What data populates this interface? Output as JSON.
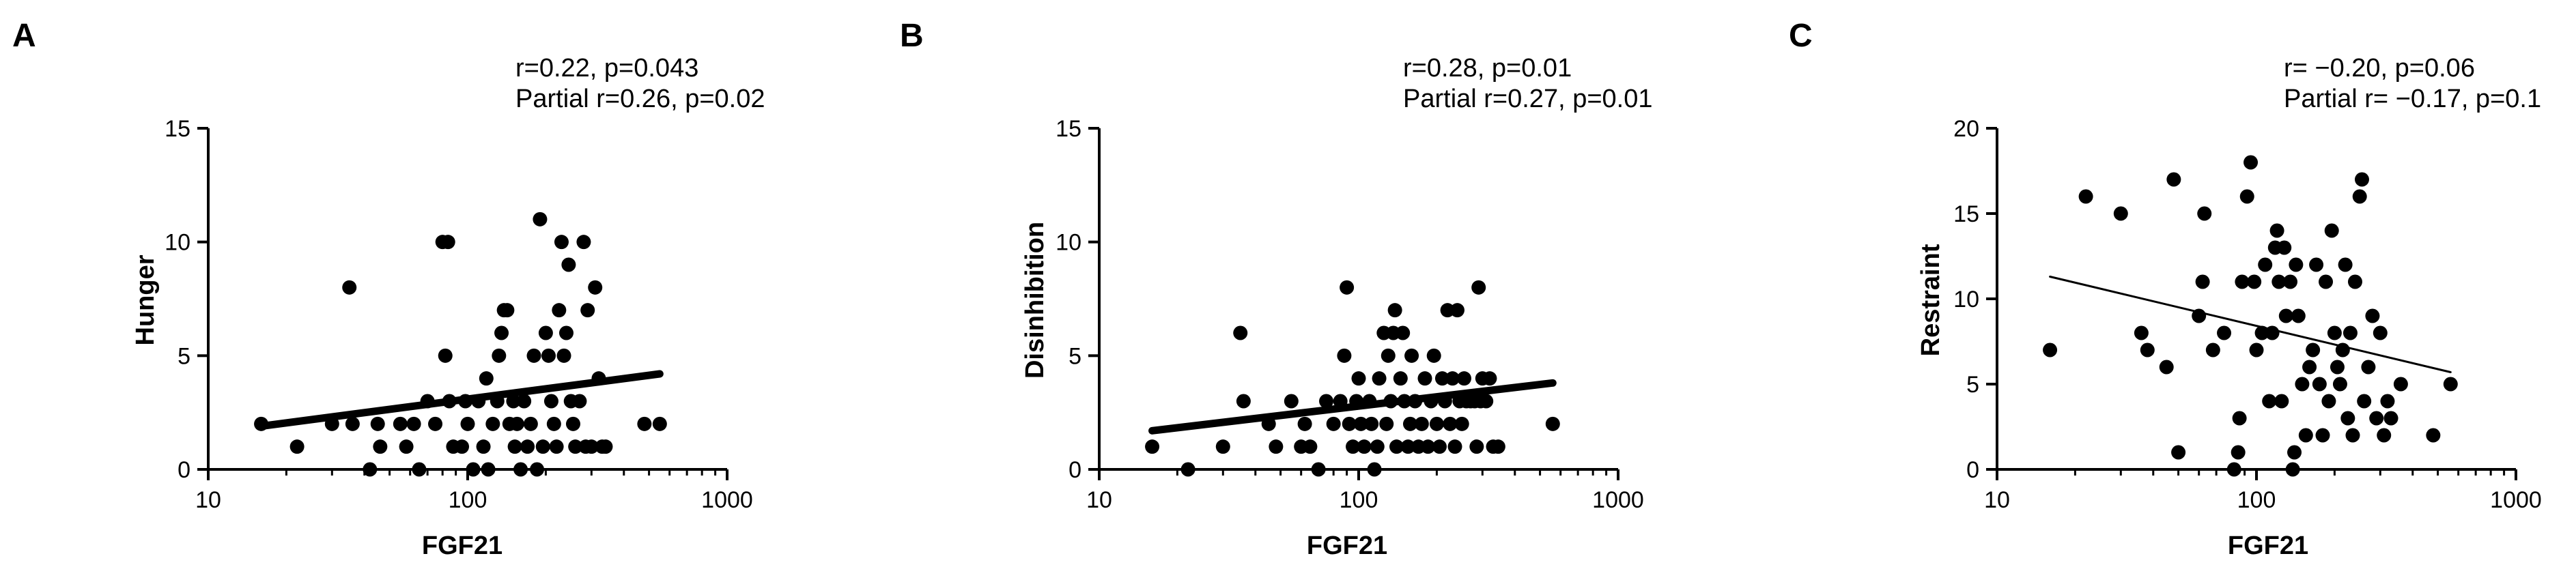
{
  "chart_data": [
    {
      "type": "scatter",
      "panel_label": "A",
      "stat_line1": "r=0.22, p=0.043",
      "stat_line2": "Partial r=0.26, p=0.02",
      "xlabel": "FGF21",
      "ylabel": "Hunger",
      "x_scale": "log",
      "xlim": [
        10,
        1000
      ],
      "ylim": [
        0,
        15
      ],
      "x_ticks": [
        10,
        100,
        1000
      ],
      "x_tick_labels": [
        "10",
        "100",
        "1000"
      ],
      "y_ticks": [
        0,
        5,
        10,
        15
      ],
      "y_tick_labels": [
        "0",
        "5",
        "10",
        "15"
      ],
      "trend_line": {
        "x": [
          16,
          550
        ],
        "y": [
          1.9,
          4.2
        ],
        "style": "thick"
      },
      "points": [
        {
          "x": 16,
          "y": 2
        },
        {
          "x": 22,
          "y": 1
        },
        {
          "x": 30,
          "y": 2
        },
        {
          "x": 35,
          "y": 8
        },
        {
          "x": 36,
          "y": 2
        },
        {
          "x": 42,
          "y": 0
        },
        {
          "x": 45,
          "y": 2
        },
        {
          "x": 46,
          "y": 1
        },
        {
          "x": 55,
          "y": 2
        },
        {
          "x": 58,
          "y": 1
        },
        {
          "x": 62,
          "y": 2
        },
        {
          "x": 65,
          "y": 0
        },
        {
          "x": 70,
          "y": 3
        },
        {
          "x": 75,
          "y": 2
        },
        {
          "x": 80,
          "y": 10
        },
        {
          "x": 84,
          "y": 10
        },
        {
          "x": 82,
          "y": 5
        },
        {
          "x": 85,
          "y": 3
        },
        {
          "x": 88,
          "y": 1
        },
        {
          "x": 95,
          "y": 1
        },
        {
          "x": 98,
          "y": 3
        },
        {
          "x": 100,
          "y": 2
        },
        {
          "x": 105,
          "y": 0
        },
        {
          "x": 110,
          "y": 3
        },
        {
          "x": 115,
          "y": 1
        },
        {
          "x": 118,
          "y": 4
        },
        {
          "x": 120,
          "y": 0
        },
        {
          "x": 125,
          "y": 2
        },
        {
          "x": 130,
          "y": 3
        },
        {
          "x": 132,
          "y": 5
        },
        {
          "x": 135,
          "y": 6
        },
        {
          "x": 138,
          "y": 7
        },
        {
          "x": 142,
          "y": 7
        },
        {
          "x": 145,
          "y": 2
        },
        {
          "x": 150,
          "y": 3
        },
        {
          "x": 152,
          "y": 1
        },
        {
          "x": 155,
          "y": 2
        },
        {
          "x": 160,
          "y": 0
        },
        {
          "x": 165,
          "y": 3
        },
        {
          "x": 170,
          "y": 1
        },
        {
          "x": 175,
          "y": 2
        },
        {
          "x": 180,
          "y": 5
        },
        {
          "x": 185,
          "y": 0
        },
        {
          "x": 190,
          "y": 11
        },
        {
          "x": 195,
          "y": 1
        },
        {
          "x": 200,
          "y": 6
        },
        {
          "x": 205,
          "y": 5
        },
        {
          "x": 210,
          "y": 3
        },
        {
          "x": 215,
          "y": 2
        },
        {
          "x": 220,
          "y": 1
        },
        {
          "x": 225,
          "y": 7
        },
        {
          "x": 230,
          "y": 10
        },
        {
          "x": 235,
          "y": 5
        },
        {
          "x": 240,
          "y": 6
        },
        {
          "x": 245,
          "y": 9
        },
        {
          "x": 250,
          "y": 3
        },
        {
          "x": 255,
          "y": 2
        },
        {
          "x": 260,
          "y": 1
        },
        {
          "x": 270,
          "y": 3
        },
        {
          "x": 280,
          "y": 10
        },
        {
          "x": 285,
          "y": 1
        },
        {
          "x": 290,
          "y": 7
        },
        {
          "x": 300,
          "y": 1
        },
        {
          "x": 310,
          "y": 8
        },
        {
          "x": 320,
          "y": 4
        },
        {
          "x": 330,
          "y": 1
        },
        {
          "x": 340,
          "y": 1
        },
        {
          "x": 480,
          "y": 2
        },
        {
          "x": 550,
          "y": 2
        }
      ]
    },
    {
      "type": "scatter",
      "panel_label": "B",
      "stat_line1": "r=0.28, p=0.01",
      "stat_line2": "Partial r=0.27, p=0.01",
      "xlabel": "FGF21",
      "ylabel": "Disinhibition",
      "x_scale": "log",
      "xlim": [
        10,
        1000
      ],
      "ylim": [
        0,
        15
      ],
      "x_ticks": [
        10,
        100,
        1000
      ],
      "x_tick_labels": [
        "10",
        "100",
        "1000"
      ],
      "y_ticks": [
        0,
        5,
        10,
        15
      ],
      "y_tick_labels": [
        "0",
        "5",
        "10",
        "15"
      ],
      "trend_line": {
        "x": [
          16,
          560
        ],
        "y": [
          1.7,
          3.8
        ],
        "style": "thick"
      },
      "points": [
        {
          "x": 16,
          "y": 1
        },
        {
          "x": 22,
          "y": 0
        },
        {
          "x": 30,
          "y": 1
        },
        {
          "x": 35,
          "y": 6
        },
        {
          "x": 36,
          "y": 3
        },
        {
          "x": 45,
          "y": 2
        },
        {
          "x": 48,
          "y": 1
        },
        {
          "x": 55,
          "y": 3
        },
        {
          "x": 60,
          "y": 1
        },
        {
          "x": 62,
          "y": 2
        },
        {
          "x": 65,
          "y": 1
        },
        {
          "x": 70,
          "y": 0
        },
        {
          "x": 75,
          "y": 3
        },
        {
          "x": 80,
          "y": 2
        },
        {
          "x": 85,
          "y": 3
        },
        {
          "x": 88,
          "y": 5
        },
        {
          "x": 90,
          "y": 8
        },
        {
          "x": 92,
          "y": 2
        },
        {
          "x": 95,
          "y": 1
        },
        {
          "x": 98,
          "y": 3
        },
        {
          "x": 100,
          "y": 4
        },
        {
          "x": 102,
          "y": 2
        },
        {
          "x": 105,
          "y": 1
        },
        {
          "x": 110,
          "y": 3
        },
        {
          "x": 112,
          "y": 2
        },
        {
          "x": 115,
          "y": 0
        },
        {
          "x": 118,
          "y": 1
        },
        {
          "x": 120,
          "y": 4
        },
        {
          "x": 125,
          "y": 6
        },
        {
          "x": 128,
          "y": 2
        },
        {
          "x": 130,
          "y": 5
        },
        {
          "x": 133,
          "y": 3
        },
        {
          "x": 136,
          "y": 6
        },
        {
          "x": 138,
          "y": 7
        },
        {
          "x": 140,
          "y": 1
        },
        {
          "x": 145,
          "y": 4
        },
        {
          "x": 148,
          "y": 6
        },
        {
          "x": 150,
          "y": 3
        },
        {
          "x": 155,
          "y": 1
        },
        {
          "x": 158,
          "y": 2
        },
        {
          "x": 160,
          "y": 5
        },
        {
          "x": 165,
          "y": 3
        },
        {
          "x": 170,
          "y": 1
        },
        {
          "x": 175,
          "y": 2
        },
        {
          "x": 180,
          "y": 4
        },
        {
          "x": 185,
          "y": 1
        },
        {
          "x": 190,
          "y": 3
        },
        {
          "x": 195,
          "y": 5
        },
        {
          "x": 200,
          "y": 2
        },
        {
          "x": 205,
          "y": 1
        },
        {
          "x": 210,
          "y": 4
        },
        {
          "x": 215,
          "y": 3
        },
        {
          "x": 220,
          "y": 7
        },
        {
          "x": 225,
          "y": 2
        },
        {
          "x": 230,
          "y": 4
        },
        {
          "x": 235,
          "y": 1
        },
        {
          "x": 240,
          "y": 7
        },
        {
          "x": 245,
          "y": 3
        },
        {
          "x": 250,
          "y": 2
        },
        {
          "x": 255,
          "y": 4
        },
        {
          "x": 260,
          "y": 3
        },
        {
          "x": 270,
          "y": 3
        },
        {
          "x": 280,
          "y": 3
        },
        {
          "x": 285,
          "y": 1
        },
        {
          "x": 290,
          "y": 8
        },
        {
          "x": 295,
          "y": 3
        },
        {
          "x": 300,
          "y": 4
        },
        {
          "x": 310,
          "y": 3
        },
        {
          "x": 320,
          "y": 4
        },
        {
          "x": 330,
          "y": 1
        },
        {
          "x": 345,
          "y": 1
        },
        {
          "x": 560,
          "y": 2
        }
      ]
    },
    {
      "type": "scatter",
      "panel_label": "C",
      "stat_line1": "r= −0.20, p=0.06",
      "stat_line2": "Partial r= −0.17, p=0.1",
      "xlabel": "FGF21",
      "ylabel": "Restraint",
      "x_scale": "log",
      "xlim": [
        10,
        1000
      ],
      "ylim": [
        0,
        20
      ],
      "x_ticks": [
        10,
        100,
        1000
      ],
      "x_tick_labels": [
        "10",
        "100",
        "1000"
      ],
      "y_ticks": [
        0,
        5,
        10,
        15,
        20
      ],
      "y_tick_labels": [
        "0",
        "5",
        "10",
        "15",
        "20"
      ],
      "trend_line": {
        "x": [
          16,
          560
        ],
        "y": [
          11.3,
          5.7
        ],
        "style": "thin"
      },
      "points": [
        {
          "x": 16,
          "y": 7
        },
        {
          "x": 22,
          "y": 16
        },
        {
          "x": 30,
          "y": 15
        },
        {
          "x": 36,
          "y": 8
        },
        {
          "x": 38,
          "y": 7
        },
        {
          "x": 45,
          "y": 6
        },
        {
          "x": 48,
          "y": 17
        },
        {
          "x": 50,
          "y": 1
        },
        {
          "x": 60,
          "y": 9
        },
        {
          "x": 62,
          "y": 11
        },
        {
          "x": 63,
          "y": 15
        },
        {
          "x": 68,
          "y": 7
        },
        {
          "x": 75,
          "y": 8
        },
        {
          "x": 82,
          "y": 0
        },
        {
          "x": 85,
          "y": 1
        },
        {
          "x": 86,
          "y": 3
        },
        {
          "x": 88,
          "y": 11
        },
        {
          "x": 92,
          "y": 16
        },
        {
          "x": 95,
          "y": 18
        },
        {
          "x": 98,
          "y": 11
        },
        {
          "x": 100,
          "y": 7
        },
        {
          "x": 105,
          "y": 8
        },
        {
          "x": 108,
          "y": 12
        },
        {
          "x": 112,
          "y": 4
        },
        {
          "x": 115,
          "y": 8
        },
        {
          "x": 118,
          "y": 13
        },
        {
          "x": 120,
          "y": 14
        },
        {
          "x": 122,
          "y": 11
        },
        {
          "x": 125,
          "y": 4
        },
        {
          "x": 128,
          "y": 13
        },
        {
          "x": 130,
          "y": 9
        },
        {
          "x": 135,
          "y": 11
        },
        {
          "x": 138,
          "y": 0
        },
        {
          "x": 140,
          "y": 1
        },
        {
          "x": 142,
          "y": 12
        },
        {
          "x": 145,
          "y": 9
        },
        {
          "x": 150,
          "y": 5
        },
        {
          "x": 155,
          "y": 2
        },
        {
          "x": 160,
          "y": 6
        },
        {
          "x": 165,
          "y": 7
        },
        {
          "x": 170,
          "y": 12
        },
        {
          "x": 175,
          "y": 5
        },
        {
          "x": 180,
          "y": 2
        },
        {
          "x": 185,
          "y": 11
        },
        {
          "x": 190,
          "y": 4
        },
        {
          "x": 195,
          "y": 14
        },
        {
          "x": 200,
          "y": 8
        },
        {
          "x": 205,
          "y": 6
        },
        {
          "x": 210,
          "y": 5
        },
        {
          "x": 215,
          "y": 7
        },
        {
          "x": 220,
          "y": 12
        },
        {
          "x": 225,
          "y": 3
        },
        {
          "x": 230,
          "y": 8
        },
        {
          "x": 235,
          "y": 2
        },
        {
          "x": 240,
          "y": 11
        },
        {
          "x": 250,
          "y": 16
        },
        {
          "x": 255,
          "y": 17
        },
        {
          "x": 260,
          "y": 4
        },
        {
          "x": 270,
          "y": 6
        },
        {
          "x": 280,
          "y": 9
        },
        {
          "x": 290,
          "y": 3
        },
        {
          "x": 300,
          "y": 8
        },
        {
          "x": 310,
          "y": 2
        },
        {
          "x": 320,
          "y": 4
        },
        {
          "x": 330,
          "y": 3
        },
        {
          "x": 360,
          "y": 5
        },
        {
          "x": 480,
          "y": 2
        },
        {
          "x": 560,
          "y": 5
        }
      ]
    }
  ]
}
